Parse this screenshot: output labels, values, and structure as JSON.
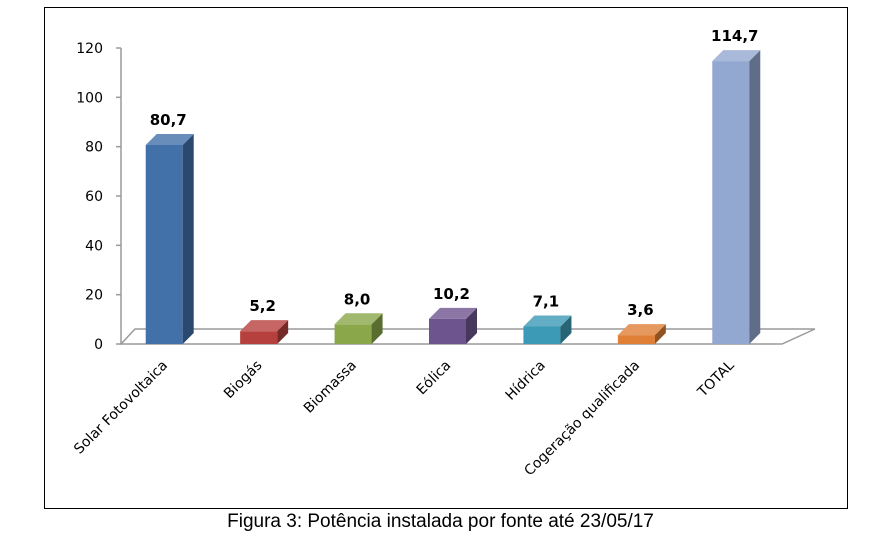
{
  "caption": "Figura 3: Potência instalada por fonte até 23/05/17",
  "chart_data": {
    "type": "bar",
    "categories": [
      "Solar Fotovoltaica",
      "Biogás",
      "Biomassa",
      "Eólica",
      "Hídrica",
      "Cogeração qualificada",
      "TOTAL"
    ],
    "values": [
      80.7,
      5.2,
      8.0,
      10.2,
      7.1,
      3.6,
      114.7
    ],
    "value_labels": [
      "80,7",
      "5,2",
      "8,0",
      "10,2",
      "7,1",
      "3,6",
      "114,7"
    ],
    "colors": [
      "#4271aa",
      "#b6403d",
      "#8aa84a",
      "#6e548e",
      "#3c9ab6",
      "#e07f36",
      "#93a8d1"
    ],
    "y_ticks": [
      "0",
      "20",
      "40",
      "60",
      "80",
      "100",
      "120"
    ],
    "ylim": [
      0,
      120
    ],
    "grid": false,
    "legend": "none",
    "style": "3d-column"
  }
}
